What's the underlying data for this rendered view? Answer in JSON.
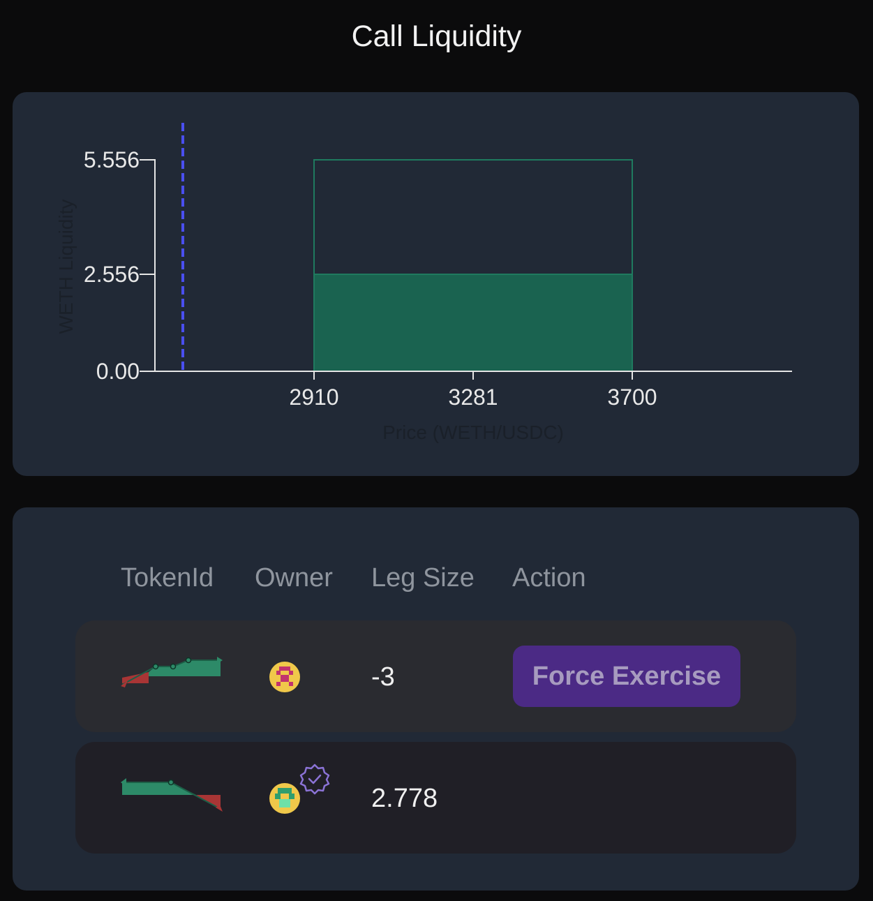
{
  "header": {
    "title": "Call Liquidity"
  },
  "chart_data": {
    "type": "area",
    "title": "",
    "xlabel": "Price (WETH/USDC)",
    "ylabel": "WETH Liquidity",
    "x_ticks": [
      "2910",
      "3281",
      "3700"
    ],
    "y_ticks": [
      "0.00",
      "2.556",
      "5.556"
    ],
    "series": [
      {
        "name": "",
        "kind": "outline",
        "x_range": [
          2910,
          3700
        ],
        "value": 5.556
      },
      {
        "name": "",
        "kind": "filled",
        "x_range": [
          2910,
          3700
        ],
        "value": 2.556
      }
    ],
    "current_price_marker": "dashed-vertical-line",
    "colors": {
      "range_fill": "#1a6350",
      "range_stroke": "#1f7a5f",
      "marker": "#4a4ff0"
    }
  },
  "table": {
    "headers": {
      "token_id": "TokenId",
      "owner": "Owner",
      "leg_size": "Leg Size",
      "action": "Action"
    },
    "rows": [
      {
        "token_icon": "payoff-sparkline-long-icon",
        "owner_icon": "pixel-avatar-icon",
        "leg_size": "-3",
        "action_label": "Force Exercise",
        "verified": false
      },
      {
        "token_icon": "payoff-sparkline-short-icon",
        "owner_icon": "pixel-avatar-icon",
        "leg_size": "2.778",
        "action_label": "",
        "verified": true
      }
    ]
  }
}
